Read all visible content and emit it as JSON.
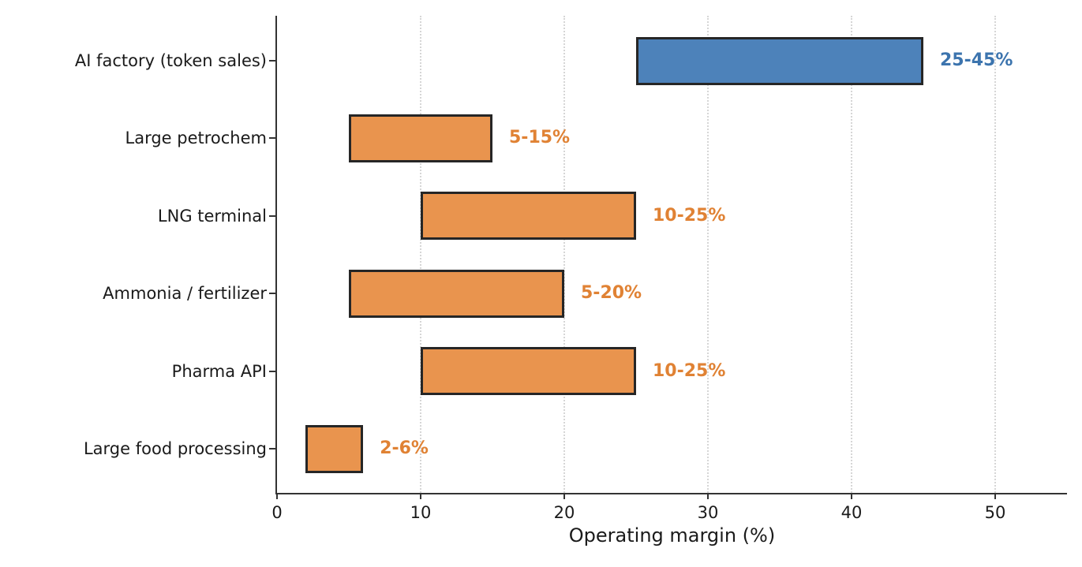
{
  "chart_data": {
    "type": "bar",
    "orientation": "horizontal-range",
    "title": "",
    "xlabel": "Operating margin (%)",
    "ylabel": "",
    "xlim": [
      0,
      55
    ],
    "xticks": [
      "0",
      "10",
      "20",
      "30",
      "40",
      "50"
    ],
    "xtick_values": [
      0,
      10,
      20,
      30,
      40,
      50
    ],
    "grid": "vertical-dotted",
    "legend": "none",
    "categories": [
      "AI factory (token sales)",
      "Large petrochem",
      "LNG terminal",
      "Ammonia / fertilizer",
      "Pharma API",
      "Large food processing"
    ],
    "bars": [
      {
        "category": "AI factory (token sales)",
        "low": 25,
        "high": 45,
        "label": "25-45%",
        "color": "blue"
      },
      {
        "category": "Large petrochem",
        "low": 5,
        "high": 15,
        "label": "5-15%",
        "color": "orange"
      },
      {
        "category": "LNG terminal",
        "low": 10,
        "high": 25,
        "label": "10-25%",
        "color": "orange"
      },
      {
        "category": "Ammonia / fertilizer",
        "low": 5,
        "high": 20,
        "label": "5-20%",
        "color": "orange"
      },
      {
        "category": "Pharma API",
        "low": 10,
        "high": 25,
        "label": "10-25%",
        "color": "orange"
      },
      {
        "category": "Large food processing",
        "low": 2,
        "high": 6,
        "label": "2-6%",
        "color": "orange"
      }
    ],
    "colors": {
      "blue_fill": "#4D82BA",
      "orange_fill": "#E9944E",
      "bar_edge": "#262626",
      "blue_text": "#3C74AE",
      "orange_text": "#E08234",
      "grid": "#D6D6D6",
      "axis": "#333333",
      "text": "#1A1A1A"
    }
  }
}
